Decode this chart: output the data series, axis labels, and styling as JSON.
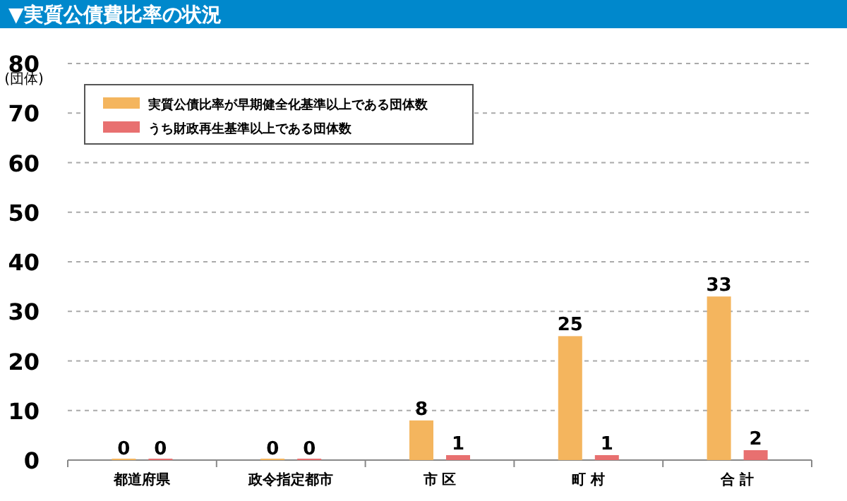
{
  "chart_data": {
    "type": "bar",
    "title": "▼実質公債費比率の状況",
    "ylabel": "(団体)",
    "categories": [
      "都道府県",
      "政令指定都市",
      "市 区",
      "町 村",
      "合 計"
    ],
    "series": [
      {
        "name": "実質公債比率が早期健全化基準以上である団体数",
        "color": "#f4b55e",
        "values": [
          0,
          0,
          8,
          25,
          33
        ]
      },
      {
        "name": "うち財政再生基準以上である団体数",
        "color": "#e87070",
        "values": [
          0,
          0,
          1,
          1,
          2
        ]
      }
    ],
    "ylim": [
      0,
      80
    ],
    "yticks": [
      0,
      10,
      20,
      30,
      40,
      50,
      60,
      70,
      80
    ],
    "grid": "y",
    "legend": "top left",
    "data_labels": true
  }
}
